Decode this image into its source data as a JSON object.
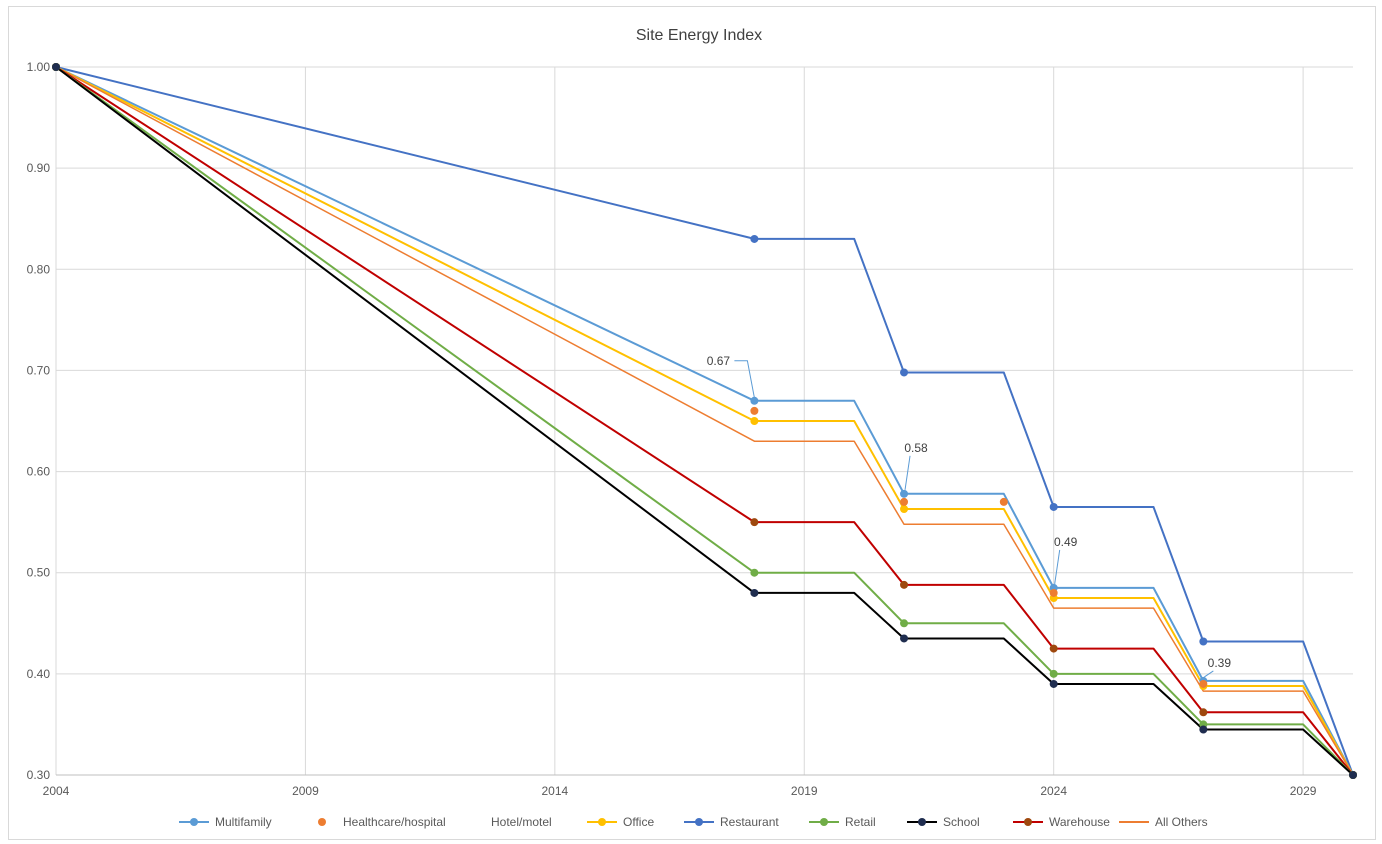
{
  "chart_data": {
    "type": "line",
    "title": "Site Energy Index",
    "xlabel": "",
    "ylabel": "",
    "xlim": [
      2004,
      2030
    ],
    "ylim": [
      0.3,
      1.0
    ],
    "x_ticks": [
      2004,
      2009,
      2014,
      2019,
      2024,
      2029
    ],
    "x_tick_labels": [
      "2004",
      "2009",
      "2014",
      "2019",
      "2024",
      "2029"
    ],
    "y_ticks": [
      0.3,
      0.4,
      0.5,
      0.6,
      0.7,
      0.8,
      0.9,
      1.0
    ],
    "y_tick_labels": [
      "0.30",
      "0.40",
      "0.50",
      "0.60",
      "0.70",
      "0.80",
      "0.90",
      "1.00"
    ],
    "grid": true,
    "legend_position": "bottom",
    "series": [
      {
        "name": "Restaurant",
        "color": "#4472C4",
        "line": true,
        "width": 2,
        "points": [
          [
            2004,
            1.0
          ],
          [
            2018,
            0.83
          ],
          [
            2020,
            0.83
          ],
          [
            2021,
            0.698
          ],
          [
            2023,
            0.698
          ],
          [
            2024,
            0.565
          ],
          [
            2026,
            0.565
          ],
          [
            2027,
            0.432
          ],
          [
            2029,
            0.432
          ],
          [
            2030,
            0.3
          ]
        ],
        "markers": [
          [
            2004,
            1.0
          ],
          [
            2018,
            0.83
          ],
          [
            2021,
            0.698
          ],
          [
            2024,
            0.565
          ],
          [
            2027,
            0.432
          ],
          [
            2030,
            0.3
          ]
        ]
      },
      {
        "name": "Multifamily",
        "color": "#5B9BD5",
        "line": true,
        "width": 2,
        "points": [
          [
            2004,
            1.0
          ],
          [
            2018,
            0.67
          ],
          [
            2020,
            0.67
          ],
          [
            2021,
            0.578
          ],
          [
            2023,
            0.578
          ],
          [
            2024,
            0.485
          ],
          [
            2026,
            0.485
          ],
          [
            2027,
            0.393
          ],
          [
            2029,
            0.393
          ],
          [
            2030,
            0.3
          ]
        ],
        "markers": [
          [
            2004,
            1.0
          ],
          [
            2018,
            0.67
          ],
          [
            2021,
            0.578
          ],
          [
            2024,
            0.485
          ],
          [
            2027,
            0.393
          ],
          [
            2030,
            0.3
          ]
        ]
      },
      {
        "name": "Healthcare/hospital",
        "color": "#ED7D31",
        "line": false,
        "width": 0,
        "points": [],
        "markers": [
          [
            2004,
            1.0
          ],
          [
            2018,
            0.66
          ],
          [
            2021,
            0.57
          ],
          [
            2023,
            0.57
          ],
          [
            2024,
            0.48
          ],
          [
            2027,
            0.39
          ],
          [
            2030,
            0.3
          ]
        ]
      },
      {
        "name": "Hotel/motel",
        "color": "#A5A5A5",
        "line": false,
        "width": 0,
        "points": [],
        "markers": []
      },
      {
        "name": "Office",
        "color": "#FFC000",
        "line": true,
        "width": 2,
        "points": [
          [
            2004,
            1.0
          ],
          [
            2018,
            0.65
          ],
          [
            2020,
            0.65
          ],
          [
            2021,
            0.563
          ],
          [
            2023,
            0.563
          ],
          [
            2024,
            0.475
          ],
          [
            2026,
            0.475
          ],
          [
            2027,
            0.388
          ],
          [
            2029,
            0.388
          ],
          [
            2030,
            0.3
          ]
        ],
        "markers": [
          [
            2004,
            1.0
          ],
          [
            2018,
            0.65
          ],
          [
            2021,
            0.563
          ],
          [
            2024,
            0.475
          ],
          [
            2027,
            0.388
          ],
          [
            2030,
            0.3
          ]
        ]
      },
      {
        "name": "All Others",
        "color": "#ED7D31",
        "line": true,
        "width": 1.5,
        "points": [
          [
            2004,
            1.0
          ],
          [
            2018,
            0.63
          ],
          [
            2020,
            0.63
          ],
          [
            2021,
            0.548
          ],
          [
            2023,
            0.548
          ],
          [
            2024,
            0.465
          ],
          [
            2026,
            0.465
          ],
          [
            2027,
            0.383
          ],
          [
            2029,
            0.383
          ],
          [
            2030,
            0.3
          ]
        ],
        "markers": []
      },
      {
        "name": "Warehouse",
        "color": "#C00000",
        "line": true,
        "width": 2,
        "marker_color": "#9E480E",
        "points": [
          [
            2004,
            1.0
          ],
          [
            2018,
            0.55
          ],
          [
            2020,
            0.55
          ],
          [
            2021,
            0.488
          ],
          [
            2023,
            0.488
          ],
          [
            2024,
            0.425
          ],
          [
            2026,
            0.425
          ],
          [
            2027,
            0.362
          ],
          [
            2029,
            0.362
          ],
          [
            2030,
            0.3
          ]
        ],
        "markers": [
          [
            2004,
            1.0
          ],
          [
            2018,
            0.55
          ],
          [
            2021,
            0.488
          ],
          [
            2024,
            0.425
          ],
          [
            2027,
            0.362
          ],
          [
            2030,
            0.3
          ]
        ]
      },
      {
        "name": "Retail",
        "color": "#70AD47",
        "line": true,
        "width": 2,
        "points": [
          [
            2004,
            1.0
          ],
          [
            2018,
            0.5
          ],
          [
            2020,
            0.5
          ],
          [
            2021,
            0.45
          ],
          [
            2023,
            0.45
          ],
          [
            2024,
            0.4
          ],
          [
            2026,
            0.4
          ],
          [
            2027,
            0.35
          ],
          [
            2029,
            0.35
          ],
          [
            2030,
            0.3
          ]
        ],
        "markers": [
          [
            2004,
            1.0
          ],
          [
            2018,
            0.5
          ],
          [
            2021,
            0.45
          ],
          [
            2024,
            0.4
          ],
          [
            2027,
            0.35
          ],
          [
            2030,
            0.3
          ]
        ]
      },
      {
        "name": "School",
        "color": "#000000",
        "line": true,
        "width": 2,
        "marker_color": "#1F2D4F",
        "points": [
          [
            2004,
            1.0
          ],
          [
            2018,
            0.48
          ],
          [
            2020,
            0.48
          ],
          [
            2021,
            0.435
          ],
          [
            2023,
            0.435
          ],
          [
            2024,
            0.39
          ],
          [
            2026,
            0.39
          ],
          [
            2027,
            0.345
          ],
          [
            2029,
            0.345
          ],
          [
            2030,
            0.3
          ]
        ],
        "markers": [
          [
            2004,
            1.0
          ],
          [
            2018,
            0.48
          ],
          [
            2021,
            0.435
          ],
          [
            2024,
            0.39
          ],
          [
            2027,
            0.345
          ],
          [
            2030,
            0.3
          ]
        ]
      }
    ],
    "legend_order": [
      "Multifamily",
      "Healthcare/hospital",
      "Hotel/motel",
      "Office",
      "Restaurant",
      "Retail",
      "School",
      "Warehouse",
      "All Others"
    ],
    "data_labels": [
      {
        "text": "0.67",
        "x": 2018,
        "y": 0.67,
        "series": "Multifamily",
        "side": "left"
      },
      {
        "text": "0.58",
        "x": 2021,
        "y": 0.578,
        "series": "Multifamily",
        "side": "above"
      },
      {
        "text": "0.49",
        "x": 2024,
        "y": 0.485,
        "series": "Multifamily",
        "side": "above"
      },
      {
        "text": "0.39",
        "x": 2027,
        "y": 0.393,
        "series": "Multifamily",
        "side": "above"
      }
    ]
  }
}
